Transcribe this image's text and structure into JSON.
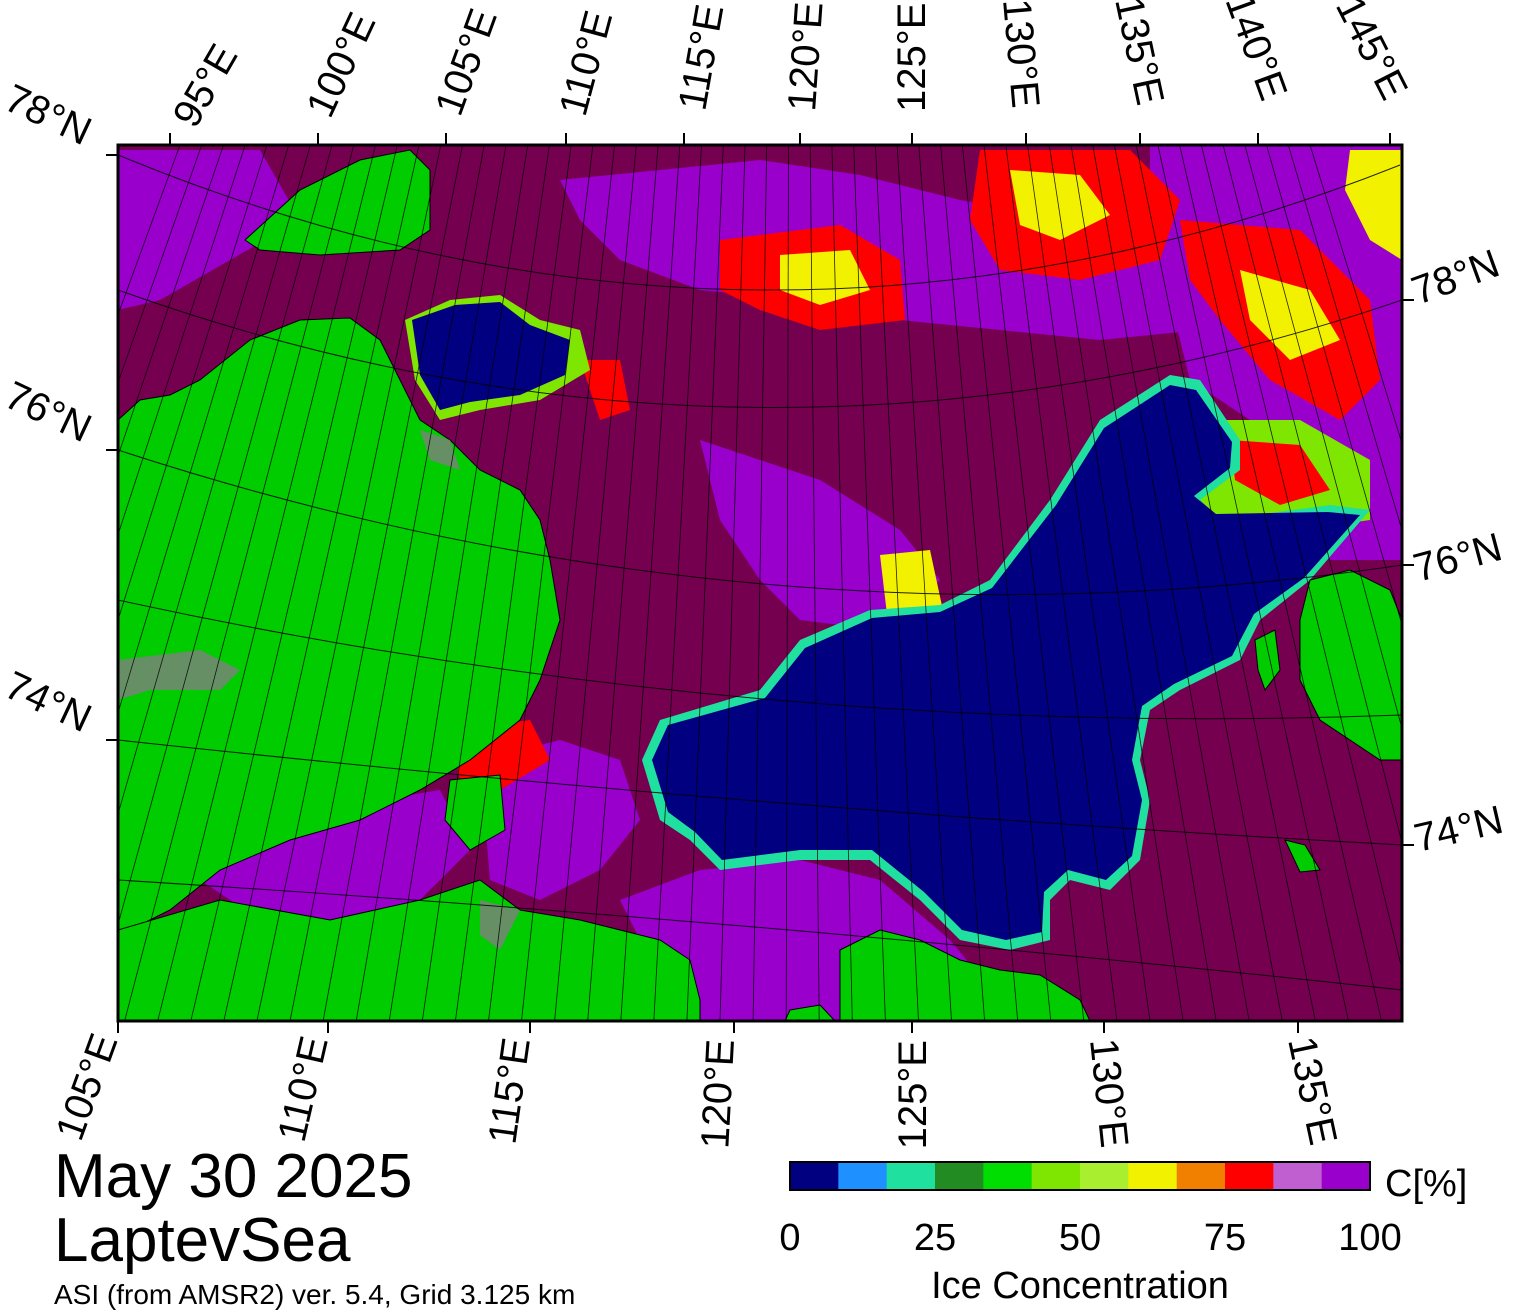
{
  "map": {
    "date": "May 30 2025",
    "region": "LaptevSea",
    "product": "ASI (from AMSR2) ver. 5.4,  Grid 3.125 km",
    "top_lon_labels": [
      "95°E",
      "100°E",
      "105°E",
      "110°E",
      "115°E",
      "120°E",
      "125°E",
      "130°E",
      "135°E",
      "140°E",
      "145°E"
    ],
    "bottom_lon_labels": [
      "105°E",
      "110°E",
      "115°E",
      "120°E",
      "125°E",
      "130°E",
      "135°E"
    ],
    "left_lat_labels": [
      "78°N",
      "76°N",
      "74°N"
    ],
    "right_lat_labels": [
      "78°N",
      "76°N",
      "74°N"
    ],
    "colors": {
      "land": "#00cc00",
      "open_water": "#000080",
      "dense_ice": "#760050",
      "violet_ice": "#9900cc",
      "coast_gray": "#808080"
    }
  },
  "colorbar": {
    "title": "Ice Concentration",
    "unit": "C[%]",
    "tick_labels": [
      "0",
      "25",
      "50",
      "75",
      "100"
    ],
    "tick_values": [
      0,
      25,
      50,
      75,
      100
    ],
    "min": 0,
    "max": 100,
    "colors": [
      "#000080",
      "#1e90ff",
      "#20e0a0",
      "#228b22",
      "#00dd00",
      "#7ee600",
      "#aaee30",
      "#f2f200",
      "#f28000",
      "#ff0000",
      "#c060d0",
      "#9900cc"
    ]
  }
}
